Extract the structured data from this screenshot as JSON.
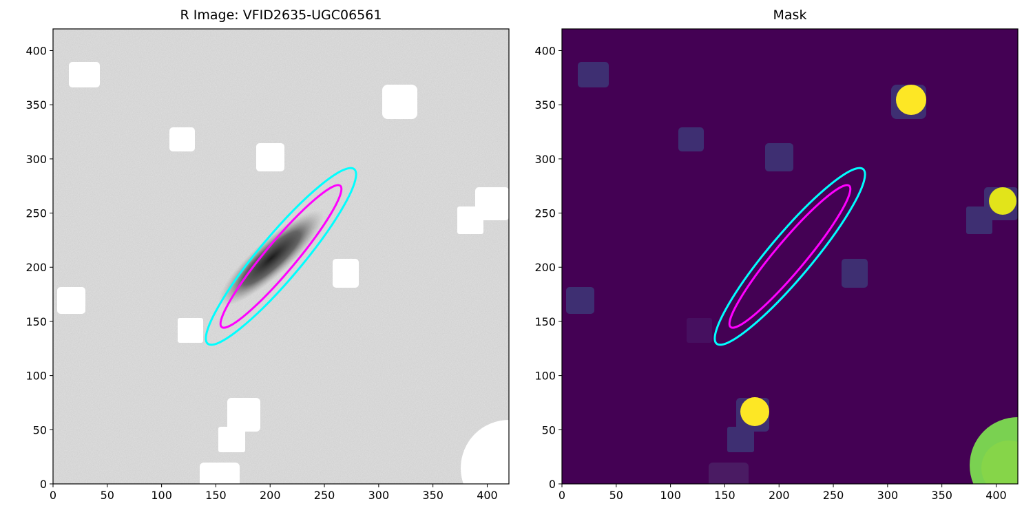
{
  "chart_data": [
    {
      "type": "image",
      "title": "R Image: VFID2635-UGC06561",
      "xlim": [
        0,
        420
      ],
      "ylim": [
        0,
        420
      ],
      "xticks": [
        0,
        50,
        100,
        150,
        200,
        250,
        300,
        350,
        400
      ],
      "yticks": [
        0,
        50,
        100,
        150,
        200,
        250,
        300,
        350,
        400
      ],
      "ellipses": [
        {
          "color": "#00ffff",
          "cx": 210,
          "cy": 210,
          "a": 105,
          "b": 20,
          "angle": 50
        },
        {
          "color": "#ff00ff",
          "cx": 210,
          "cy": 210,
          "a": 85,
          "b": 14,
          "angle": 50
        }
      ]
    },
    {
      "type": "image",
      "title": "Mask",
      "xlim": [
        0,
        420
      ],
      "ylim": [
        0,
        420
      ],
      "xticks": [
        0,
        50,
        100,
        150,
        200,
        250,
        300,
        350,
        400
      ],
      "yticks": [
        0,
        50,
        100,
        150,
        200,
        250,
        300,
        350,
        400
      ],
      "ellipses": [
        {
          "color": "#00ffff",
          "cx": 210,
          "cy": 210,
          "a": 105,
          "b": 20,
          "angle": 50
        },
        {
          "color": "#ff00ff",
          "cx": 210,
          "cy": 210,
          "a": 85,
          "b": 14,
          "angle": 50
        }
      ]
    }
  ]
}
